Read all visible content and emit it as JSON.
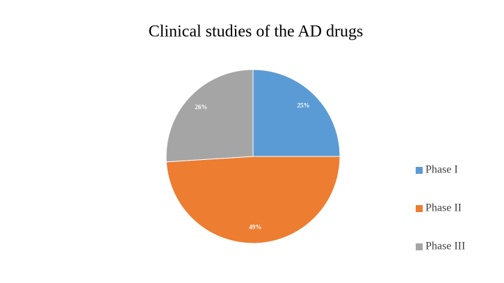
{
  "chart_data": {
    "type": "pie",
    "title": "Clinical studies of the AD drugs",
    "categories": [
      "Phase I",
      "Phase II",
      "Phase III"
    ],
    "values": [
      25,
      49,
      26
    ],
    "value_labels": [
      "25%",
      "49%",
      "26%"
    ],
    "colors": [
      "#5b9bd5",
      "#ed7d31",
      "#a5a5a5"
    ],
    "legend": "right"
  }
}
